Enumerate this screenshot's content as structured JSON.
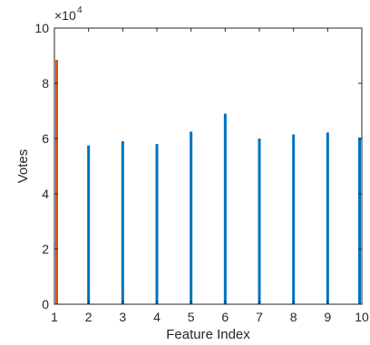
{
  "chart_data": {
    "type": "bar",
    "title": "",
    "xlabel": "Feature Index",
    "ylabel": "Votes",
    "exponent_base": "×10",
    "exponent_power": "4",
    "categories": [
      "1",
      "2",
      "3",
      "4",
      "5",
      "6",
      "7",
      "8",
      "9",
      "10"
    ],
    "values": [
      88500,
      57500,
      59000,
      58000,
      62500,
      69000,
      60000,
      61500,
      62200,
      60300
    ],
    "highlight_index": 0,
    "colors": {
      "highlight": "#D95319",
      "default": "#0072BD",
      "axis": "#262626"
    },
    "xlim": [
      1,
      10
    ],
    "ylim": [
      0,
      100000
    ],
    "yticks": [
      0,
      20000,
      40000,
      60000,
      80000,
      100000
    ],
    "ytick_labels": [
      "0",
      "2",
      "4",
      "6",
      "8",
      "10"
    ],
    "grid": false,
    "legend": "none"
  }
}
